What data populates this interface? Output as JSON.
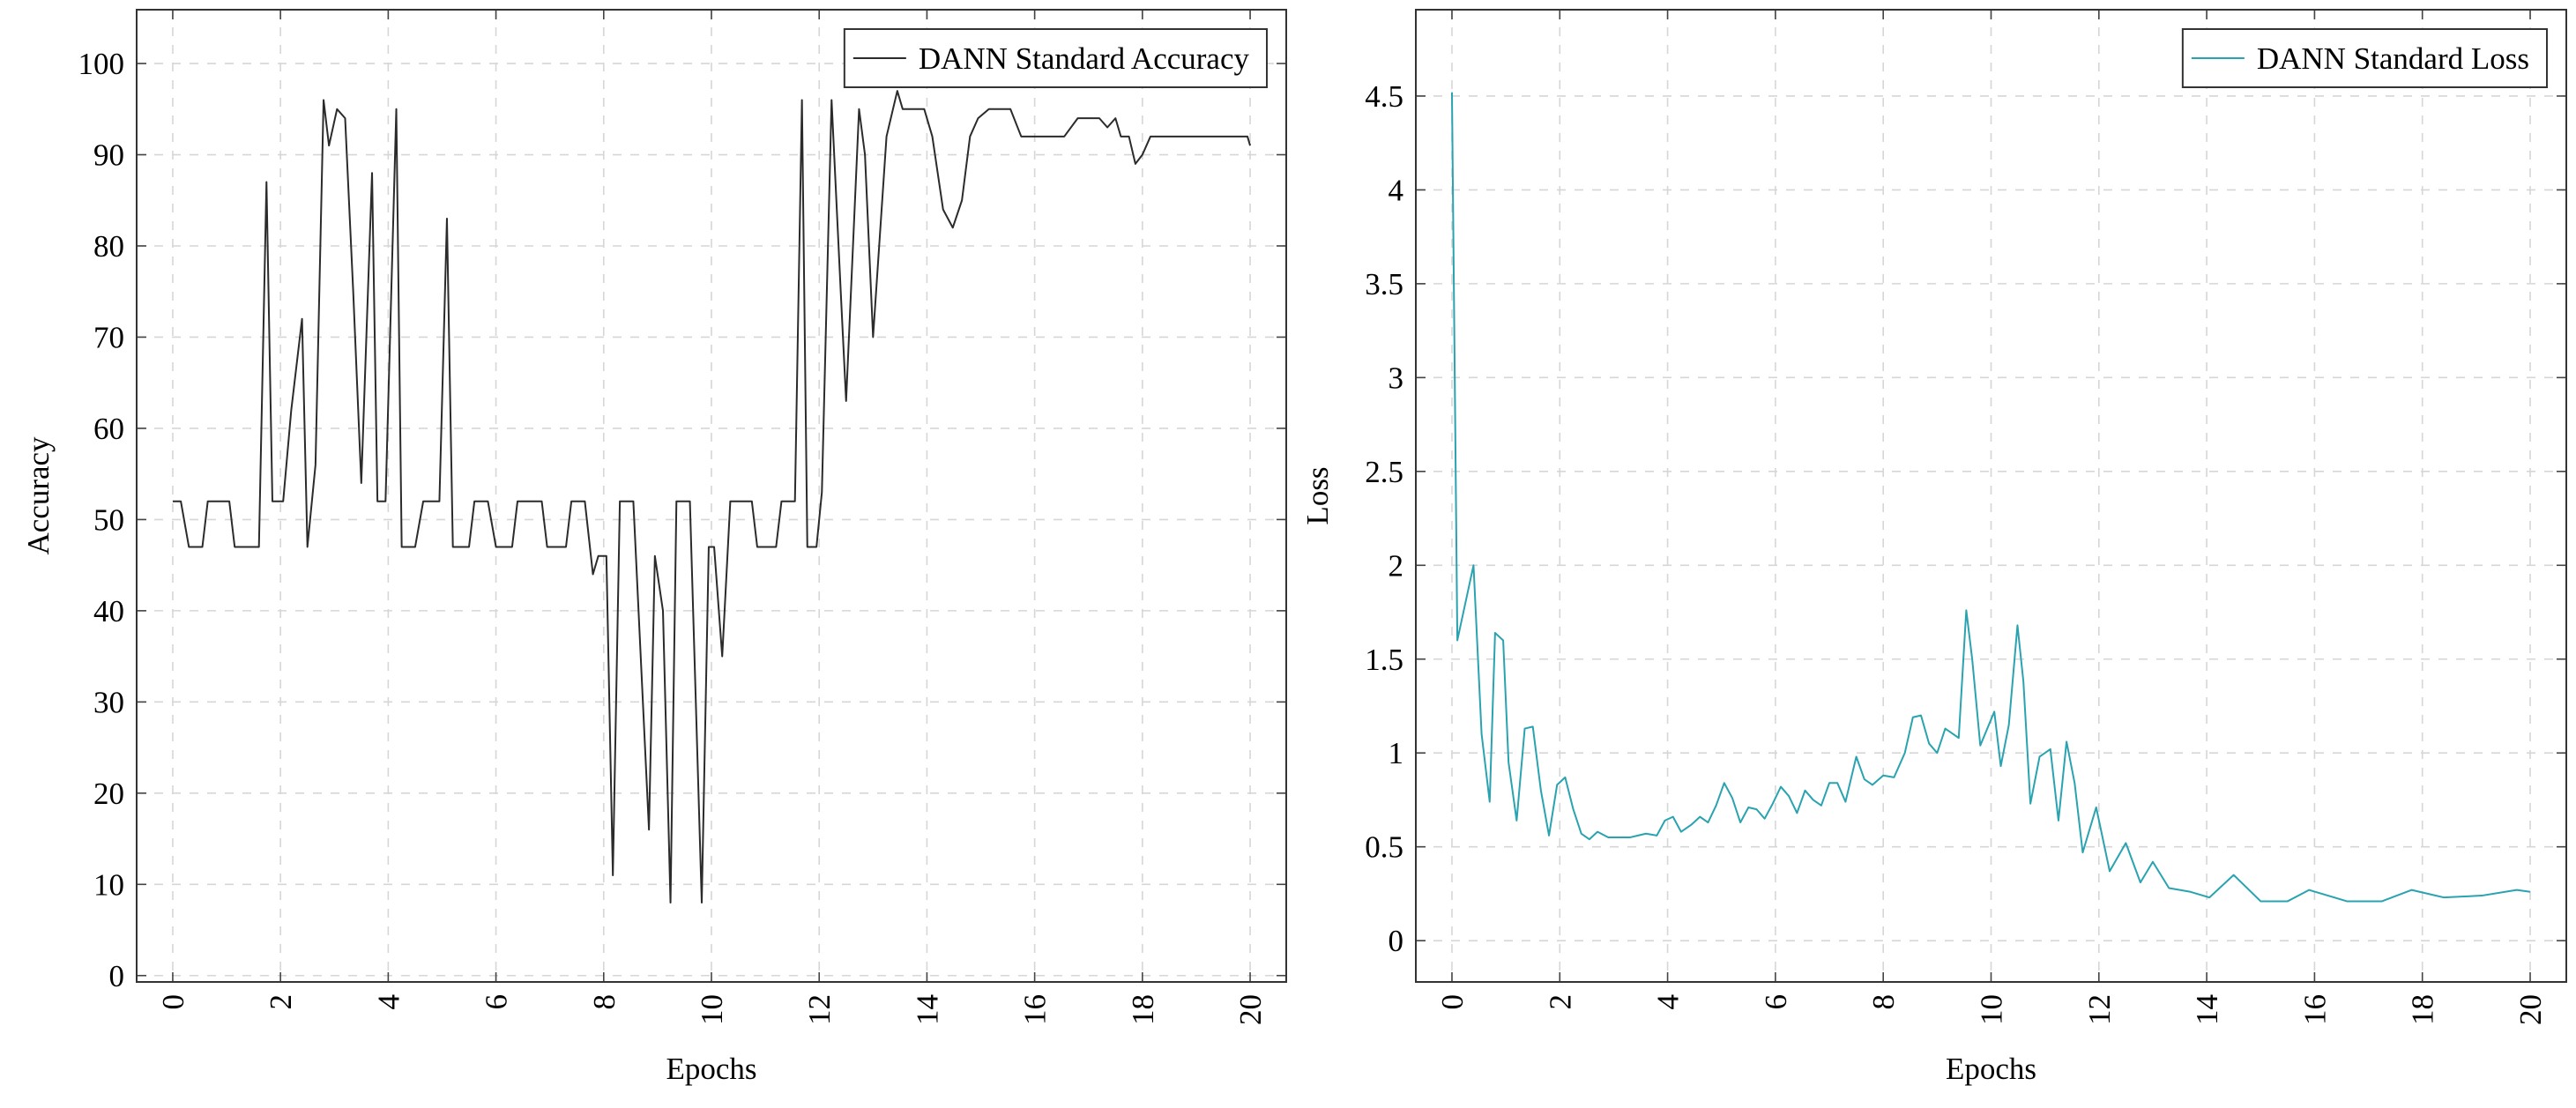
{
  "chart_data": [
    {
      "type": "line",
      "xlabel": "Epochs",
      "ylabel": "Accuracy",
      "x": [
        0,
        0.15,
        0.3,
        0.55,
        0.65,
        1.05,
        1.15,
        1.6,
        1.74,
        1.85,
        2.05,
        2.2,
        2.4,
        2.5,
        2.65,
        2.8,
        2.9,
        3.05,
        3.2,
        3.35,
        3.5,
        3.7,
        3.8,
        3.95,
        4.15,
        4.25,
        4.5,
        4.65,
        4.95,
        5.09,
        5.2,
        5.5,
        5.6,
        5.85,
        6.0,
        6.3,
        6.4,
        6.85,
        6.95,
        7.3,
        7.4,
        7.65,
        7.8,
        7.9,
        8.05,
        8.17,
        8.3,
        8.55,
        8.84,
        8.95,
        9.1,
        9.24,
        9.35,
        9.6,
        9.82,
        9.95,
        10.05,
        10.2,
        10.35,
        10.75,
        10.85,
        11.2,
        11.3,
        11.55,
        11.68,
        11.78,
        11.95,
        12.05,
        12.23,
        12.4,
        12.5,
        12.74,
        12.85,
        13.0,
        13.25,
        13.45,
        13.55,
        13.95,
        14.1,
        14.3,
        14.48,
        14.65,
        14.8,
        14.95,
        15.15,
        15.55,
        15.75,
        16.55,
        16.8,
        17.2,
        17.35,
        17.5,
        17.6,
        17.75,
        17.87,
        18.0,
        18.15,
        19.95,
        20.0
      ],
      "series": [
        {
          "name": "DANN Standard Accuracy",
          "color": "#2b2b2b",
          "values": [
            52,
            52,
            47,
            47,
            52,
            52,
            47,
            47,
            87,
            52,
            52,
            62,
            72,
            47,
            56,
            96,
            91,
            95,
            94,
            75,
            54,
            88,
            52,
            52,
            95,
            47,
            47,
            52,
            52,
            83,
            47,
            47,
            52,
            52,
            47,
            47,
            52,
            52,
            47,
            47,
            52,
            52,
            44,
            46,
            46,
            11,
            52,
            52,
            16,
            46,
            40,
            8,
            52,
            52,
            8,
            47,
            47,
            35,
            52,
            52,
            47,
            47,
            52,
            52,
            96,
            47,
            47,
            53,
            96,
            75,
            63,
            95,
            90,
            70,
            92,
            97,
            95,
            95,
            92,
            84,
            82,
            85,
            92,
            94,
            95,
            95,
            92,
            92,
            94,
            94,
            93,
            94,
            92,
            92,
            89,
            90,
            92,
            92,
            91
          ]
        }
      ],
      "xlim": [
        -0.67,
        20.67
      ],
      "ylim": [
        -0.7,
        105.9
      ],
      "xticks": [
        0,
        2,
        4,
        6,
        8,
        10,
        12,
        14,
        16,
        18,
        20
      ],
      "yticks": [
        0,
        10,
        20,
        30,
        40,
        50,
        60,
        70,
        80,
        90,
        100
      ],
      "grid": true,
      "legend": "upper right"
    },
    {
      "type": "line",
      "xlabel": "Epochs",
      "ylabel": "Loss",
      "x": [
        0,
        0.1,
        0.4,
        0.55,
        0.7,
        0.8,
        0.95,
        1.05,
        1.2,
        1.35,
        1.5,
        1.65,
        1.8,
        1.95,
        2.1,
        2.25,
        2.4,
        2.55,
        2.7,
        2.9,
        3.1,
        3.3,
        3.45,
        3.6,
        3.8,
        3.95,
        4.1,
        4.25,
        4.45,
        4.6,
        4.75,
        4.9,
        5.05,
        5.2,
        5.35,
        5.5,
        5.65,
        5.8,
        5.95,
        6.1,
        6.25,
        6.4,
        6.55,
        6.7,
        6.85,
        7.0,
        7.15,
        7.3,
        7.5,
        7.65,
        7.8,
        8.0,
        8.2,
        8.4,
        8.55,
        8.7,
        8.85,
        9.0,
        9.15,
        9.3,
        9.4,
        9.54,
        9.65,
        9.8,
        10.06,
        10.18,
        10.33,
        10.49,
        10.6,
        10.73,
        10.9,
        11.1,
        11.25,
        11.4,
        11.55,
        11.7,
        11.95,
        12.2,
        12.5,
        12.77,
        13.0,
        13.3,
        13.7,
        14.05,
        14.5,
        15.0,
        15.5,
        15.9,
        16.6,
        17.25,
        17.8,
        18.4,
        19.1,
        19.75,
        20.0
      ],
      "series": [
        {
          "name": "DANN Standard Loss",
          "color": "#2aa3b0",
          "values": [
            4.52,
            1.6,
            2.0,
            1.1,
            0.74,
            1.64,
            1.6,
            0.95,
            0.64,
            1.13,
            1.14,
            0.8,
            0.56,
            0.83,
            0.87,
            0.7,
            0.57,
            0.54,
            0.58,
            0.55,
            0.55,
            0.55,
            0.56,
            0.57,
            0.56,
            0.64,
            0.66,
            0.58,
            0.62,
            0.66,
            0.63,
            0.72,
            0.84,
            0.76,
            0.63,
            0.71,
            0.7,
            0.65,
            0.73,
            0.82,
            0.77,
            0.68,
            0.8,
            0.75,
            0.72,
            0.84,
            0.84,
            0.74,
            0.98,
            0.86,
            0.83,
            0.88,
            0.87,
            1.0,
            1.19,
            1.2,
            1.05,
            1.0,
            1.13,
            1.1,
            1.08,
            1.76,
            1.5,
            1.04,
            1.22,
            0.93,
            1.15,
            1.68,
            1.38,
            0.73,
            0.98,
            1.02,
            0.64,
            1.06,
            0.84,
            0.47,
            0.71,
            0.37,
            0.52,
            0.31,
            0.42,
            0.28,
            0.26,
            0.23,
            0.35,
            0.21,
            0.21,
            0.27,
            0.21,
            0.21,
            0.27,
            0.23,
            0.24,
            0.27,
            0.26
          ]
        }
      ],
      "xlim": [
        -0.67,
        20.67
      ],
      "ylim": [
        -0.22,
        4.96
      ],
      "xticks": [
        0,
        2,
        4,
        6,
        8,
        10,
        12,
        14,
        16,
        18,
        20
      ],
      "yticks": [
        0,
        0.5,
        1,
        1.5,
        2,
        2.5,
        3,
        3.5,
        4,
        4.5
      ],
      "grid": true,
      "legend": "upper right"
    }
  ]
}
